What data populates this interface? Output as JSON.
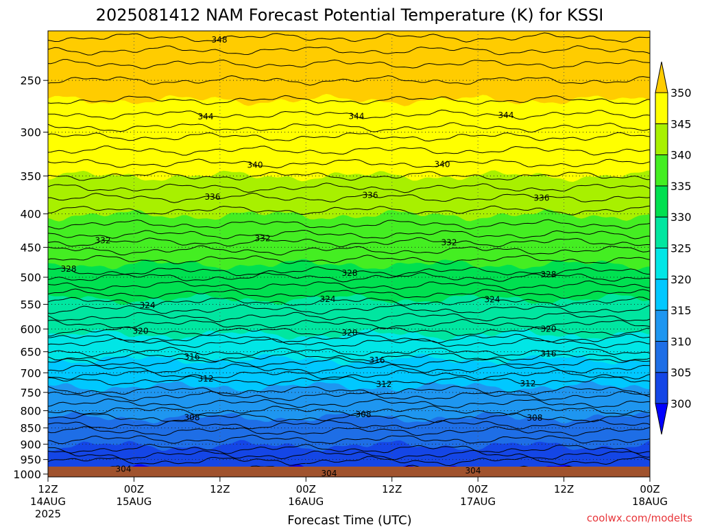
{
  "chart_data": {
    "type": "contour",
    "title": "2025081412 NAM Forecast Potential Temperature (K) for KSSI",
    "xlabel": "Forecast Time (UTC)",
    "ylabel": "",
    "credit": "coolwx.com/modelts",
    "y_scale": "log",
    "y_reversed": true,
    "ylim": [
      1010,
      210
    ],
    "y_ticks": [
      1000,
      950,
      900,
      850,
      800,
      750,
      700,
      650,
      600,
      550,
      500,
      450,
      400,
      350,
      300,
      250
    ],
    "x_ticks": [
      {
        "hour": 0,
        "line1": "12Z",
        "line2": "14AUG",
        "line3": "2025"
      },
      {
        "hour": 12,
        "line1": "00Z",
        "line2": "15AUG",
        "line3": ""
      },
      {
        "hour": 24,
        "line1": "12Z",
        "line2": "",
        "line3": ""
      },
      {
        "hour": 36,
        "line1": "00Z",
        "line2": "16AUG",
        "line3": ""
      },
      {
        "hour": 48,
        "line1": "12Z",
        "line2": "",
        "line3": ""
      },
      {
        "hour": 60,
        "line1": "00Z",
        "line2": "17AUG",
        "line3": ""
      },
      {
        "hour": 72,
        "line1": "12Z",
        "line2": "",
        "line3": ""
      },
      {
        "hour": 84,
        "line1": "00Z",
        "line2": "18AUG",
        "line3": ""
      }
    ],
    "xlim": [
      0,
      84
    ],
    "colorbar": {
      "labels": [
        "300",
        "305",
        "310",
        "315",
        "320",
        "325",
        "330",
        "335",
        "340",
        "345",
        "350"
      ],
      "colors": [
        "#0000ff",
        "#1446e6",
        "#1e6ee6",
        "#1e96f0",
        "#00c8ff",
        "#00e6e6",
        "#00e6a0",
        "#00e050",
        "#44ee22",
        "#a8f000",
        "#ffff00",
        "#ffcc00"
      ]
    },
    "contour_levels": [
      {
        "value": 304,
        "label": "304",
        "pressure": 985
      },
      {
        "value": 308,
        "label": "308",
        "pressure": 820
      },
      {
        "value": 312,
        "label": "312",
        "pressure": 720
      },
      {
        "value": 316,
        "label": "316",
        "pressure": 662
      },
      {
        "value": 320,
        "label": "320",
        "pressure": 605
      },
      {
        "value": 324,
        "label": "324",
        "pressure": 545
      },
      {
        "value": 328,
        "label": "328",
        "pressure": 490
      },
      {
        "value": 332,
        "label": "332",
        "pressure": 442
      },
      {
        "value": 336,
        "label": "336",
        "pressure": 378
      },
      {
        "value": 340,
        "label": "340",
        "pressure": 335
      },
      {
        "value": 344,
        "label": "344",
        "pressure": 282
      },
      {
        "value": 348,
        "label": "348",
        "pressure": 215
      }
    ],
    "surface_color": "#a0522d",
    "grid": true
  }
}
